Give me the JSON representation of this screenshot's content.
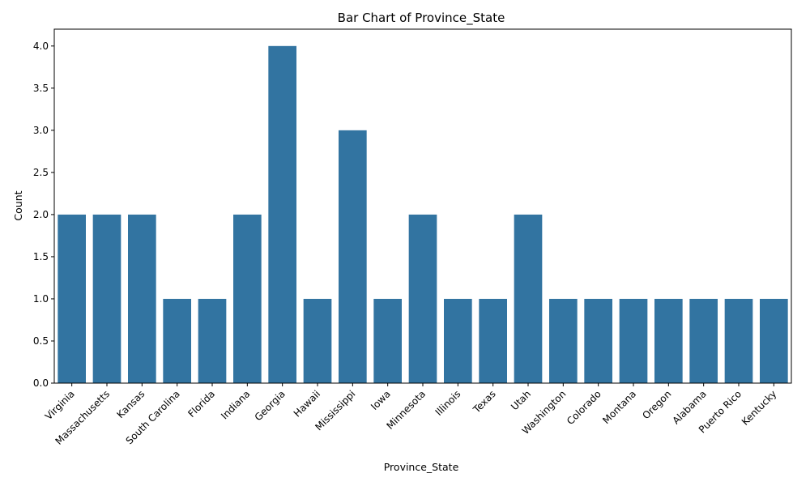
{
  "chart_data": {
    "type": "bar",
    "title": "Bar Chart of Province_State",
    "xlabel": "Province_State",
    "ylabel": "Count",
    "categories": [
      "Virginia",
      "Massachusetts",
      "Kansas",
      "South Carolina",
      "Florida",
      "Indiana",
      "Georgia",
      "Hawaii",
      "Mississippi",
      "Iowa",
      "Minnesota",
      "Illinois",
      "Texas",
      "Utah",
      "Washington",
      "Colorado",
      "Montana",
      "Oregon",
      "Alabama",
      "Puerto Rico",
      "Kentucky"
    ],
    "values": [
      2,
      2,
      2,
      1,
      1,
      2,
      4,
      1,
      3,
      1,
      2,
      1,
      1,
      2,
      1,
      1,
      1,
      1,
      1,
      1,
      1
    ],
    "ylim": [
      0,
      4.2
    ],
    "yticks": [
      "0.0",
      "0.5",
      "1.0",
      "1.5",
      "2.0",
      "2.5",
      "3.0",
      "3.5",
      "4.0"
    ],
    "bar_color": "#3274a1",
    "grid": false,
    "legend": "none",
    "x_tick_rotation_deg": 45
  }
}
